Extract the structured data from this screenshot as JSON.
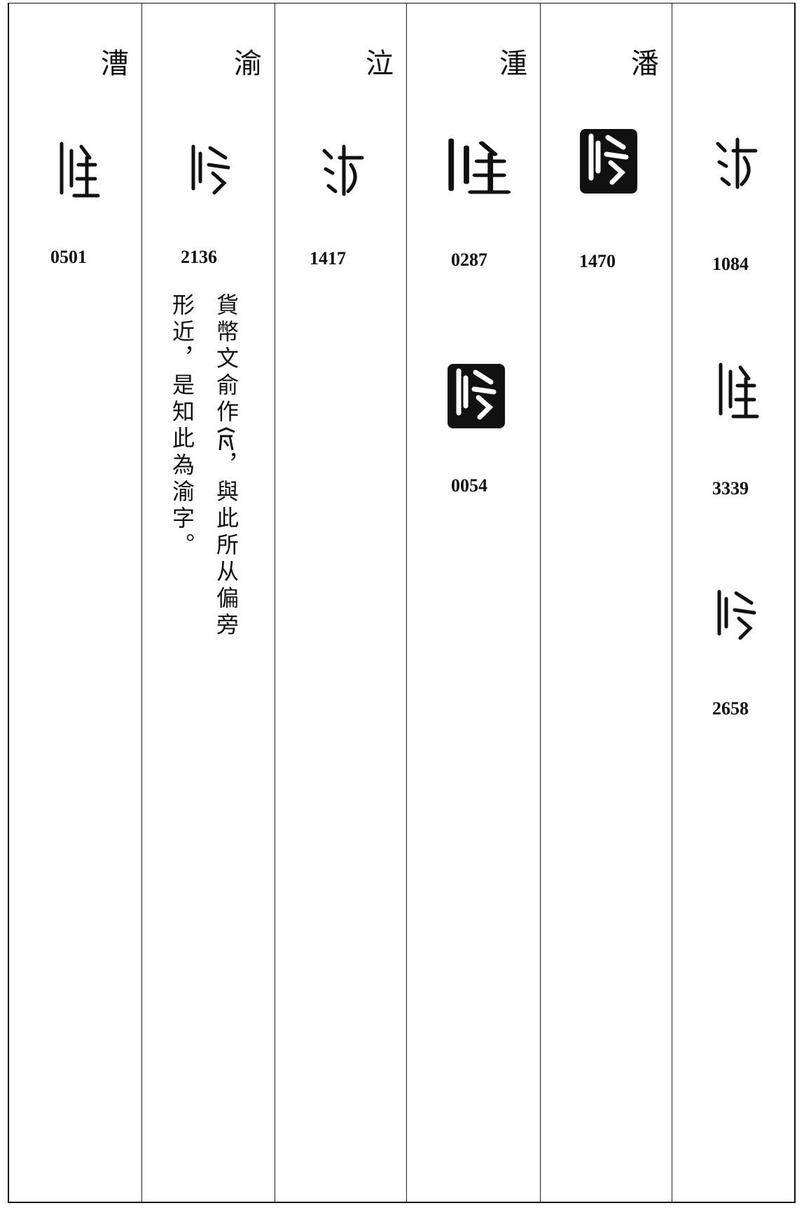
{
  "columns": [
    {
      "heading": "漕",
      "entries": [
        {
          "code": "0501"
        }
      ]
    },
    {
      "heading": "渝",
      "entries": [
        {
          "code": "2136"
        }
      ],
      "note": [
        "貨幣文俞作",
        "，與此所从偏旁",
        "形近，是知此為渝字。"
      ]
    },
    {
      "heading": "泣",
      "entries": [
        {
          "code": "1417"
        }
      ]
    },
    {
      "heading": "湩",
      "entries": [
        {
          "code": "0287"
        },
        {
          "code": "0054"
        }
      ]
    },
    {
      "heading": "潘",
      "entries": [
        {
          "code": "1470"
        }
      ]
    },
    {
      "entries": [
        {
          "code": "1084"
        },
        {
          "code": "3339"
        },
        {
          "code": "2658"
        }
      ]
    }
  ]
}
